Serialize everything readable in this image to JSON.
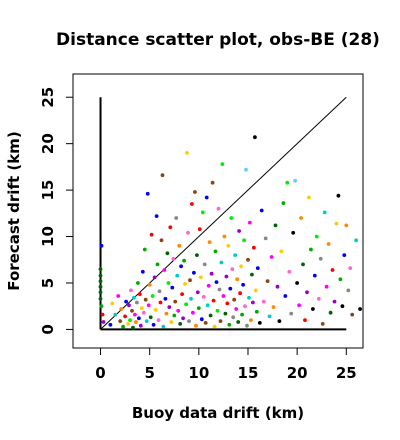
{
  "chart_data": {
    "type": "scatter",
    "title": "Distance scatter plot, obs-BE (28)",
    "xlabel": "Buoy data drift (km)",
    "ylabel": "Forecast drift (km)",
    "xlim": [
      -2.8,
      26.7
    ],
    "ylim": [
      -2.0,
      27.5
    ],
    "x_ticks": [
      0,
      5,
      10,
      15,
      20,
      25
    ],
    "y_ticks": [
      0,
      5,
      10,
      15,
      20,
      25
    ],
    "x_tick_labels": [
      "0",
      "5",
      "10",
      "15",
      "20",
      "25"
    ],
    "y_tick_labels": [
      "0",
      "5",
      "10",
      "15",
      "20",
      "25"
    ],
    "grid": false,
    "legend": "none",
    "reference_lines": {
      "axes_cross": {
        "x": [
          0,
          25
        ],
        "y": [
          0,
          25
        ]
      },
      "identity": {
        "from": [
          0,
          0
        ],
        "to": [
          25,
          25
        ]
      }
    },
    "colors": [
      "#ff0000",
      "#0000ff",
      "#00aa00",
      "#ff00ff",
      "#00cccc",
      "#ffcc00",
      "#000000",
      "#ff8800",
      "#9900cc",
      "#888888",
      "#00ee00",
      "#8b4513",
      "#ff66cc",
      "#66ccff",
      "#006400"
    ],
    "points": [
      {
        "x": 0.1,
        "y": 9.0,
        "c": "#0000ff"
      },
      {
        "x": 0.0,
        "y": 6.5,
        "c": "#006400"
      },
      {
        "x": 0.0,
        "y": 5.8,
        "c": "#006400"
      },
      {
        "x": 0.0,
        "y": 5.2,
        "c": "#006400"
      },
      {
        "x": 0.0,
        "y": 4.6,
        "c": "#006400"
      },
      {
        "x": 0.0,
        "y": 4.0,
        "c": "#006400"
      },
      {
        "x": 0.0,
        "y": 3.3,
        "c": "#006400"
      },
      {
        "x": 0.1,
        "y": 2.5,
        "c": "#00aa00"
      },
      {
        "x": 0.2,
        "y": 1.6,
        "c": "#ff0000"
      },
      {
        "x": 0.3,
        "y": 0.8,
        "c": "#9900cc"
      },
      {
        "x": 1.0,
        "y": 0.5,
        "c": "#0000ff"
      },
      {
        "x": 1.2,
        "y": 2.8,
        "c": "#ffcc00"
      },
      {
        "x": 1.5,
        "y": 1.6,
        "c": "#00cccc"
      },
      {
        "x": 1.8,
        "y": 3.6,
        "c": "#ff00ff"
      },
      {
        "x": 2.0,
        "y": 0.9,
        "c": "#8b4513"
      },
      {
        "x": 2.1,
        "y": 2.2,
        "c": "#ff8800"
      },
      {
        "x": 2.3,
        "y": 0.3,
        "c": "#00aa00"
      },
      {
        "x": 2.5,
        "y": 1.4,
        "c": "#ff0000"
      },
      {
        "x": 2.6,
        "y": 3.0,
        "c": "#0000ff"
      },
      {
        "x": 2.8,
        "y": 0.6,
        "c": "#ffcc00"
      },
      {
        "x": 2.9,
        "y": 2.6,
        "c": "#9900cc"
      },
      {
        "x": 3.0,
        "y": 1.0,
        "c": "#00ee00"
      },
      {
        "x": 3.1,
        "y": 4.2,
        "c": "#ff66cc"
      },
      {
        "x": 3.2,
        "y": 2.0,
        "c": "#8b4513"
      },
      {
        "x": 3.3,
        "y": 0.2,
        "c": "#006400"
      },
      {
        "x": 3.4,
        "y": 3.4,
        "c": "#00cccc"
      },
      {
        "x": 3.5,
        "y": 1.6,
        "c": "#ff00ff"
      },
      {
        "x": 3.6,
        "y": 0.8,
        "c": "#ff8800"
      },
      {
        "x": 3.7,
        "y": 2.9,
        "c": "#888888"
      },
      {
        "x": 3.8,
        "y": 5.0,
        "c": "#00aa00"
      },
      {
        "x": 3.9,
        "y": 1.2,
        "c": "#0000ff"
      },
      {
        "x": 4.0,
        "y": 3.8,
        "c": "#ff0000"
      },
      {
        "x": 4.1,
        "y": 0.4,
        "c": "#9900cc"
      },
      {
        "x": 4.2,
        "y": 2.3,
        "c": "#ffcc00"
      },
      {
        "x": 4.3,
        "y": 6.2,
        "c": "#0000ff"
      },
      {
        "x": 4.4,
        "y": 1.8,
        "c": "#ff66cc"
      },
      {
        "x": 4.5,
        "y": 8.6,
        "c": "#00aa00"
      },
      {
        "x": 4.6,
        "y": 3.2,
        "c": "#8b4513"
      },
      {
        "x": 4.7,
        "y": 0.9,
        "c": "#00cccc"
      },
      {
        "x": 4.8,
        "y": 14.6,
        "c": "#0000ff"
      },
      {
        "x": 4.9,
        "y": 2.6,
        "c": "#ff00ff"
      },
      {
        "x": 5.0,
        "y": 4.8,
        "c": "#ff8800"
      },
      {
        "x": 5.1,
        "y": 1.3,
        "c": "#006400"
      },
      {
        "x": 5.2,
        "y": 10.2,
        "c": "#ff0000"
      },
      {
        "x": 5.3,
        "y": 3.6,
        "c": "#00ee00"
      },
      {
        "x": 5.4,
        "y": 0.5,
        "c": "#0000ff"
      },
      {
        "x": 5.5,
        "y": 5.6,
        "c": "#9900cc"
      },
      {
        "x": 5.6,
        "y": 2.1,
        "c": "#ffcc00"
      },
      {
        "x": 5.7,
        "y": 12.2,
        "c": "#0000ff"
      },
      {
        "x": 5.8,
        "y": 7.0,
        "c": "#00aa00"
      },
      {
        "x": 5.9,
        "y": 1.0,
        "c": "#ff66cc"
      },
      {
        "x": 6.0,
        "y": 4.1,
        "c": "#888888"
      },
      {
        "x": 6.1,
        "y": 2.9,
        "c": "#ff0000"
      },
      {
        "x": 6.2,
        "y": 9.6,
        "c": "#8b4513"
      },
      {
        "x": 6.3,
        "y": 16.6,
        "c": "#8b4513"
      },
      {
        "x": 6.4,
        "y": 0.3,
        "c": "#00cccc"
      },
      {
        "x": 6.5,
        "y": 6.4,
        "c": "#ff00ff"
      },
      {
        "x": 6.6,
        "y": 3.3,
        "c": "#0000ff"
      },
      {
        "x": 6.7,
        "y": 1.7,
        "c": "#ff8800"
      },
      {
        "x": 6.8,
        "y": 8.2,
        "c": "#006400"
      },
      {
        "x": 6.9,
        "y": 5.0,
        "c": "#00ee00"
      },
      {
        "x": 7.0,
        "y": 2.4,
        "c": "#9900cc"
      },
      {
        "x": 7.1,
        "y": 11.0,
        "c": "#ff0000"
      },
      {
        "x": 7.2,
        "y": 0.8,
        "c": "#ffcc00"
      },
      {
        "x": 7.3,
        "y": 4.5,
        "c": "#0000ff"
      },
      {
        "x": 7.4,
        "y": 7.6,
        "c": "#ff66cc"
      },
      {
        "x": 7.5,
        "y": 1.5,
        "c": "#00aa00"
      },
      {
        "x": 7.6,
        "y": 3.0,
        "c": "#8b4513"
      },
      {
        "x": 7.7,
        "y": 12.0,
        "c": "#888888"
      },
      {
        "x": 7.8,
        "y": 5.8,
        "c": "#00cccc"
      },
      {
        "x": 7.9,
        "y": 2.0,
        "c": "#ff00ff"
      },
      {
        "x": 8.0,
        "y": 9.0,
        "c": "#ff8800"
      },
      {
        "x": 8.1,
        "y": 0.6,
        "c": "#006400"
      },
      {
        "x": 8.2,
        "y": 6.8,
        "c": "#0000ff"
      },
      {
        "x": 8.3,
        "y": 3.8,
        "c": "#ff0000"
      },
      {
        "x": 8.4,
        "y": 1.2,
        "c": "#9900cc"
      },
      {
        "x": 8.5,
        "y": 7.4,
        "c": "#00aa00"
      },
      {
        "x": 8.6,
        "y": 4.9,
        "c": "#ffcc00"
      },
      {
        "x": 8.7,
        "y": 2.7,
        "c": "#00ee00"
      },
      {
        "x": 8.8,
        "y": 19.0,
        "c": "#ffcc00"
      },
      {
        "x": 8.9,
        "y": 10.4,
        "c": "#ff66cc"
      },
      {
        "x": 9.0,
        "y": 0.9,
        "c": "#888888"
      },
      {
        "x": 9.1,
        "y": 5.3,
        "c": "#8b4513"
      },
      {
        "x": 9.2,
        "y": 3.3,
        "c": "#00cccc"
      },
      {
        "x": 9.3,
        "y": 13.5,
        "c": "#ff0000"
      },
      {
        "x": 9.4,
        "y": 1.8,
        "c": "#ff00ff"
      },
      {
        "x": 9.5,
        "y": 6.1,
        "c": "#0000ff"
      },
      {
        "x": 9.6,
        "y": 14.8,
        "c": "#8b4513"
      },
      {
        "x": 9.7,
        "y": 0.4,
        "c": "#ff8800"
      },
      {
        "x": 9.8,
        "y": 8.0,
        "c": "#006400"
      },
      {
        "x": 9.9,
        "y": 4.0,
        "c": "#9900cc"
      },
      {
        "x": 10.0,
        "y": 2.3,
        "c": "#00aa00"
      },
      {
        "x": 10.1,
        "y": 10.8,
        "c": "#ff0000"
      },
      {
        "x": 10.2,
        "y": 5.6,
        "c": "#ffcc00"
      },
      {
        "x": 10.3,
        "y": 1.1,
        "c": "#0000ff"
      },
      {
        "x": 10.4,
        "y": 12.6,
        "c": "#00ee00"
      },
      {
        "x": 10.5,
        "y": 3.5,
        "c": "#ff66cc"
      },
      {
        "x": 10.6,
        "y": 7.0,
        "c": "#888888"
      },
      {
        "x": 10.7,
        "y": 0.7,
        "c": "#8b4513"
      },
      {
        "x": 10.8,
        "y": 14.2,
        "c": "#0000ff"
      },
      {
        "x": 10.9,
        "y": 2.6,
        "c": "#00cccc"
      },
      {
        "x": 11.0,
        "y": 4.7,
        "c": "#ff00ff"
      },
      {
        "x": 11.1,
        "y": 9.4,
        "c": "#ff8800"
      },
      {
        "x": 11.2,
        "y": 1.5,
        "c": "#006400"
      },
      {
        "x": 11.3,
        "y": 6.0,
        "c": "#9900cc"
      },
      {
        "x": 11.4,
        "y": 15.8,
        "c": "#8b4513"
      },
      {
        "x": 11.5,
        "y": 3.1,
        "c": "#ff0000"
      },
      {
        "x": 11.6,
        "y": 0.3,
        "c": "#ffcc00"
      },
      {
        "x": 11.7,
        "y": 8.4,
        "c": "#00aa00"
      },
      {
        "x": 11.8,
        "y": 5.1,
        "c": "#0000ff"
      },
      {
        "x": 11.9,
        "y": 2.0,
        "c": "#00ee00"
      },
      {
        "x": 12.0,
        "y": 13.0,
        "c": "#ff66cc"
      },
      {
        "x": 12.1,
        "y": 4.3,
        "c": "#888888"
      },
      {
        "x": 12.2,
        "y": 0.9,
        "c": "#8b4513"
      },
      {
        "x": 12.3,
        "y": 7.2,
        "c": "#00cccc"
      },
      {
        "x": 12.4,
        "y": 17.8,
        "c": "#00ee00"
      },
      {
        "x": 12.5,
        "y": 3.6,
        "c": "#ff00ff"
      },
      {
        "x": 12.6,
        "y": 10.0,
        "c": "#ff8800"
      },
      {
        "x": 12.7,
        "y": 1.7,
        "c": "#006400"
      },
      {
        "x": 12.8,
        "y": 5.7,
        "c": "#9900cc"
      },
      {
        "x": 12.9,
        "y": 2.8,
        "c": "#ff0000"
      },
      {
        "x": 13.0,
        "y": 9.0,
        "c": "#ffcc00"
      },
      {
        "x": 13.1,
        "y": 0.5,
        "c": "#00aa00"
      },
      {
        "x": 13.2,
        "y": 4.4,
        "c": "#0000ff"
      },
      {
        "x": 13.3,
        "y": 12.0,
        "c": "#00ee00"
      },
      {
        "x": 13.4,
        "y": 6.5,
        "c": "#ff66cc"
      },
      {
        "x": 13.5,
        "y": 1.3,
        "c": "#888888"
      },
      {
        "x": 13.6,
        "y": 3.2,
        "c": "#8b4513"
      },
      {
        "x": 13.7,
        "y": 8.0,
        "c": "#00cccc"
      },
      {
        "x": 13.8,
        "y": 2.2,
        "c": "#ff00ff"
      },
      {
        "x": 13.9,
        "y": 5.4,
        "c": "#ff8800"
      },
      {
        "x": 14.0,
        "y": 0.8,
        "c": "#006400"
      },
      {
        "x": 14.1,
        "y": 10.6,
        "c": "#9900cc"
      },
      {
        "x": 14.2,
        "y": 3.9,
        "c": "#ff0000"
      },
      {
        "x": 14.3,
        "y": 6.8,
        "c": "#ffcc00"
      },
      {
        "x": 14.4,
        "y": 1.6,
        "c": "#00aa00"
      },
      {
        "x": 14.5,
        "y": 4.8,
        "c": "#0000ff"
      },
      {
        "x": 14.6,
        "y": 9.6,
        "c": "#00ee00"
      },
      {
        "x": 14.7,
        "y": 2.5,
        "c": "#ff66cc"
      },
      {
        "x": 14.8,
        "y": 17.2,
        "c": "#66ccff"
      },
      {
        "x": 14.9,
        "y": 0.4,
        "c": "#888888"
      },
      {
        "x": 15.0,
        "y": 7.5,
        "c": "#8b4513"
      },
      {
        "x": 15.1,
        "y": 3.4,
        "c": "#00cccc"
      },
      {
        "x": 15.2,
        "y": 11.5,
        "c": "#ff00ff"
      },
      {
        "x": 15.3,
        "y": 1.0,
        "c": "#ff8800"
      },
      {
        "x": 15.4,
        "y": 5.9,
        "c": "#006400"
      },
      {
        "x": 15.5,
        "y": 2.9,
        "c": "#9900cc"
      },
      {
        "x": 15.6,
        "y": 8.8,
        "c": "#ff0000"
      },
      {
        "x": 15.7,
        "y": 20.7,
        "c": "#000000"
      },
      {
        "x": 15.8,
        "y": 4.2,
        "c": "#ffcc00"
      },
      {
        "x": 15.9,
        "y": 1.9,
        "c": "#00aa00"
      },
      {
        "x": 16.0,
        "y": 6.6,
        "c": "#0000ff"
      },
      {
        "x": 16.2,
        "y": 0.7,
        "c": "#000000"
      },
      {
        "x": 16.4,
        "y": 12.8,
        "c": "#0000ff"
      },
      {
        "x": 16.6,
        "y": 3.0,
        "c": "#ff66cc"
      },
      {
        "x": 16.8,
        "y": 9.8,
        "c": "#888888"
      },
      {
        "x": 17.0,
        "y": 5.2,
        "c": "#8b4513"
      },
      {
        "x": 17.2,
        "y": 1.4,
        "c": "#00cccc"
      },
      {
        "x": 17.4,
        "y": 7.8,
        "c": "#ff00ff"
      },
      {
        "x": 17.6,
        "y": 2.4,
        "c": "#ff8800"
      },
      {
        "x": 17.8,
        "y": 11.2,
        "c": "#006400"
      },
      {
        "x": 18.0,
        "y": 4.6,
        "c": "#9900cc"
      },
      {
        "x": 18.2,
        "y": 0.9,
        "c": "#000000"
      },
      {
        "x": 18.4,
        "y": 8.4,
        "c": "#ffcc00"
      },
      {
        "x": 18.6,
        "y": 13.6,
        "c": "#00aa00"
      },
      {
        "x": 18.8,
        "y": 3.6,
        "c": "#0000ff"
      },
      {
        "x": 19.0,
        "y": 15.8,
        "c": "#00ee00"
      },
      {
        "x": 19.2,
        "y": 6.2,
        "c": "#ff66cc"
      },
      {
        "x": 19.4,
        "y": 1.7,
        "c": "#888888"
      },
      {
        "x": 19.6,
        "y": 10.4,
        "c": "#000000"
      },
      {
        "x": 19.8,
        "y": 16.0,
        "c": "#66ccff"
      },
      {
        "x": 20.0,
        "y": 5.0,
        "c": "#000000"
      },
      {
        "x": 20.2,
        "y": 2.6,
        "c": "#ff00ff"
      },
      {
        "x": 20.4,
        "y": 12.0,
        "c": "#ff8800"
      },
      {
        "x": 20.6,
        "y": 7.0,
        "c": "#006400"
      },
      {
        "x": 20.8,
        "y": 1.0,
        "c": "#ff0000"
      },
      {
        "x": 21.0,
        "y": 4.0,
        "c": "#9900cc"
      },
      {
        "x": 21.2,
        "y": 14.2,
        "c": "#ffcc00"
      },
      {
        "x": 21.4,
        "y": 8.6,
        "c": "#00aa00"
      },
      {
        "x": 21.6,
        "y": 2.2,
        "c": "#000000"
      },
      {
        "x": 21.8,
        "y": 5.8,
        "c": "#0000ff"
      },
      {
        "x": 22.0,
        "y": 10.0,
        "c": "#00ee00"
      },
      {
        "x": 22.2,
        "y": 3.3,
        "c": "#ff66cc"
      },
      {
        "x": 22.4,
        "y": 7.6,
        "c": "#888888"
      },
      {
        "x": 22.6,
        "y": 0.6,
        "c": "#8b4513"
      },
      {
        "x": 22.8,
        "y": 12.6,
        "c": "#00cccc"
      },
      {
        "x": 23.0,
        "y": 4.6,
        "c": "#ff00ff"
      },
      {
        "x": 23.2,
        "y": 9.2,
        "c": "#ff8800"
      },
      {
        "x": 23.4,
        "y": 1.8,
        "c": "#006400"
      },
      {
        "x": 23.6,
        "y": 6.4,
        "c": "#ff0000"
      },
      {
        "x": 23.8,
        "y": 3.0,
        "c": "#9900cc"
      },
      {
        "x": 24.0,
        "y": 11.4,
        "c": "#ffcc00"
      },
      {
        "x": 24.2,
        "y": 14.4,
        "c": "#000000"
      },
      {
        "x": 24.4,
        "y": 5.4,
        "c": "#00aa00"
      },
      {
        "x": 24.6,
        "y": 2.5,
        "c": "#000000"
      },
      {
        "x": 24.8,
        "y": 8.0,
        "c": "#0000ff"
      },
      {
        "x": 25.0,
        "y": 11.2,
        "c": "#ff8800"
      },
      {
        "x": 25.2,
        "y": 4.2,
        "c": "#888888"
      },
      {
        "x": 25.4,
        "y": 6.6,
        "c": "#ff66cc"
      },
      {
        "x": 25.6,
        "y": 1.6,
        "c": "#8b4513"
      },
      {
        "x": 26.0,
        "y": 9.6,
        "c": "#00cccc"
      },
      {
        "x": 26.4,
        "y": 2.2,
        "c": "#000000"
      }
    ]
  }
}
